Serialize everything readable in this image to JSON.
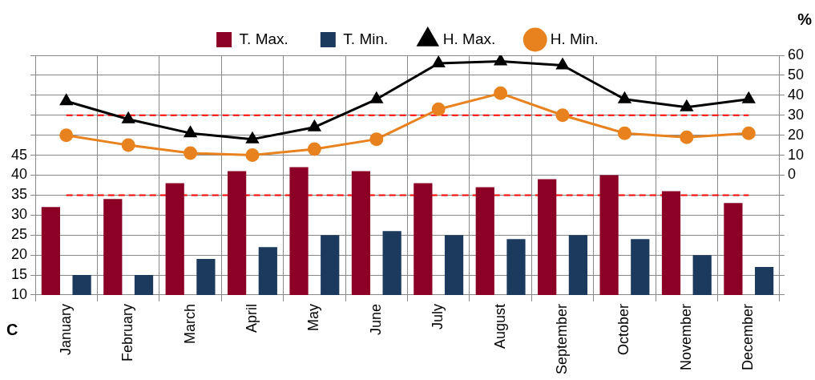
{
  "chart_data": {
    "type": "bar",
    "ylabel": "C",
    "y2label": "%",
    "categories": [
      "January",
      "February",
      "March",
      "April",
      "May",
      "June",
      "July",
      "August",
      "September",
      "October",
      "November",
      "December"
    ],
    "series": [
      {
        "name": "T. Max.",
        "color": "#8b0024",
        "values": [
          32,
          34,
          38,
          41,
          42,
          41,
          38,
          37,
          39,
          40,
          36,
          33
        ]
      },
      {
        "name": "T. Min.",
        "color": "#1b3a5e",
        "values": [
          15,
          15,
          19,
          22,
          25,
          26,
          25,
          24,
          25,
          24,
          20,
          17
        ]
      },
      {
        "name": "H. Max.",
        "type": "line",
        "axis": "y2",
        "marker": "triangle",
        "color": "#000000",
        "values": [
          37,
          28,
          21,
          18,
          24,
          38,
          56,
          57,
          55,
          38,
          34,
          38
        ]
      },
      {
        "name": "H. Min.",
        "type": "line",
        "axis": "y2",
        "marker": "circle",
        "color": "#e8821e",
        "values": [
          20,
          15,
          11,
          10,
          13,
          18,
          33,
          41,
          30,
          21,
          19,
          21
        ]
      }
    ],
    "ylim": [
      10,
      70
    ],
    "yticks": [
      10,
      15,
      20,
      25,
      30,
      35,
      40,
      45,
      {
        "value": 50,
        "label": null
      },
      {
        "value": 55,
        "label": null
      },
      {
        "value": 60,
        "label": null
      },
      {
        "value": 65,
        "label": null
      },
      {
        "value": 70,
        "label": null
      }
    ],
    "y2lim": [
      -60,
      60
    ],
    "y2ticks": [
      {
        "value": -60,
        "label": null
      },
      {
        "value": -50,
        "label": null
      },
      {
        "value": -40,
        "label": null
      },
      {
        "value": -30,
        "label": null
      },
      {
        "value": -20,
        "label": null
      },
      {
        "value": -10,
        "label": null
      },
      0,
      10,
      20,
      30,
      40,
      50,
      60
    ],
    "ref_lines": [
      {
        "axis": "y",
        "value": 35,
        "color": "#ff0000",
        "line_style": "dashed"
      },
      {
        "axis": "y2",
        "value": 30,
        "color": "#ff0000",
        "line_style": "dashed"
      }
    ],
    "grid": true,
    "legend": "top",
    "line_style": "solid"
  }
}
